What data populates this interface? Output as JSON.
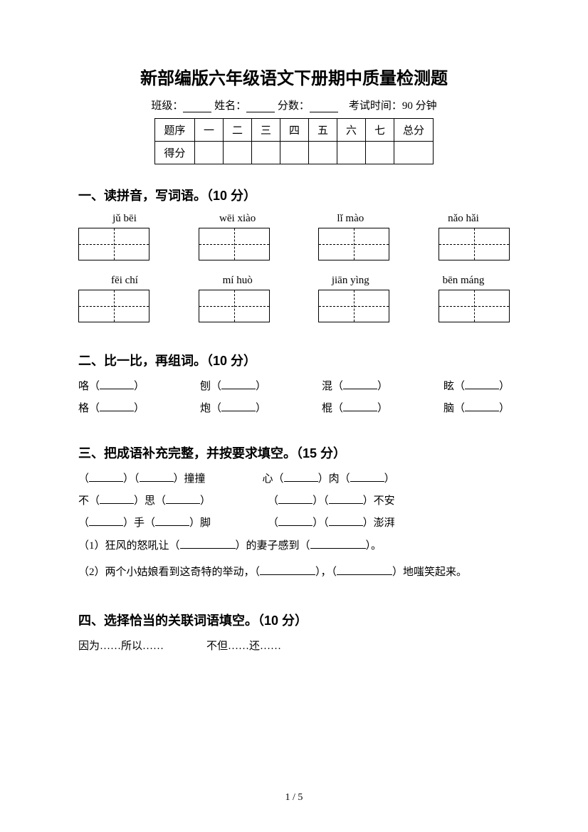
{
  "title": "新部编版六年级语文下册期中质量检测题",
  "info": {
    "class_label": "班级：",
    "name_label": "姓名：",
    "score_label": "分数：",
    "exam_time": "考试时间：90 分钟"
  },
  "score_table": {
    "header": [
      "题序",
      "一",
      "二",
      "三",
      "四",
      "五",
      "六",
      "七",
      "总分"
    ],
    "row_label": "得分"
  },
  "section1": {
    "title": "一、读拼音，写词语。（10 分）",
    "pinyin_row1": [
      "jǔ  bēi",
      "wēi xiào",
      "lǐ mào",
      "nǎo hǎi"
    ],
    "pinyin_row2": [
      "fēi chí",
      "mí huò",
      "jiān yìng",
      "bēn máng"
    ]
  },
  "section2": {
    "title": "二、比一比，再组词。（10 分）",
    "row1": [
      "咯（",
      "刨（",
      "混（",
      "眩（"
    ],
    "row2": [
      "格（",
      "炮（",
      "棍（",
      "脑（"
    ],
    "close": "）"
  },
  "section3": {
    "title": "三、把成语补充完整，并按要求填空。（15 分）",
    "pairs": [
      [
        "（＿＿＿）（＿＿＿）撞撞",
        "心（＿＿＿）肉（＿＿＿）"
      ],
      [
        "不（＿＿＿）思（＿＿＿）",
        "（＿＿＿）（＿＿＿）不安"
      ],
      [
        "（＿＿＿）手（＿＿＿）脚",
        "（＿＿＿）（＿＿＿）澎湃"
      ]
    ],
    "q1_pre": "（1）狂风的怒吼让（",
    "q1_mid": "）的妻子感到（",
    "q1_end": "）。",
    "q2_pre": "（2）两个小姑娘看到这奇特的举动，（",
    "q2_mid": "），（",
    "q2_end": "）地嗤笑起来。"
  },
  "section4": {
    "title": "四、选择恰当的关联词语填空。（10 分）",
    "options": "因为……所以……　　　　不但……还……"
  },
  "page_num": "1  /  5"
}
